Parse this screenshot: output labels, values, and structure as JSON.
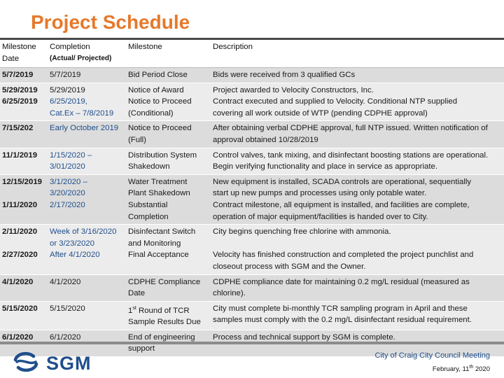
{
  "title": "Project Schedule",
  "header": {
    "col0": [
      "Milestone",
      "Date"
    ],
    "col1_main": "Completion",
    "col1_sub": "(Actual/ Projected)",
    "col2": "Milestone",
    "col3": "Description"
  },
  "rows": [
    {
      "date": [
        "5/7/2019"
      ],
      "completion": [
        "5/7/2019"
      ],
      "milestone": [
        "Bid Period Close"
      ],
      "description": [
        "Bids were received from 3 qualified GCs"
      ]
    },
    {
      "date": [
        "5/29/2019",
        "6/25/2019"
      ],
      "completion": [
        "5/29/2019",
        "6/25/2019,",
        "Cat.Ex – 7/8/2019"
      ],
      "completion_blue_from": 1,
      "milestone": [
        "Notice of Award",
        "Notice to Proceed",
        "(Conditional)"
      ],
      "description": [
        "Project awarded to Velocity Constructors, Inc.",
        "Contract executed and supplied to Velocity. Conditional NTP supplied",
        "covering all work outside of WTP (pending CDPHE approval)"
      ]
    },
    {
      "date": [
        "7/15/202"
      ],
      "completion": [
        "Early October 2019"
      ],
      "completion_blue_from": 0,
      "milestone": [
        "Notice to Proceed",
        "(Full)"
      ],
      "description": [
        "After obtaining verbal CDPHE approval, full NTP issued. Written notification of",
        "approval obtained 10/28/2019"
      ]
    },
    {
      "date": [
        "11/1/2019"
      ],
      "completion": [
        "1/15/2020 –",
        "3/01/2020"
      ],
      "completion_blue_from": 0,
      "milestone": [
        "Distribution System",
        "Shakedown"
      ],
      "description": [
        "Control valves, tank mixing, and disinfectant boosting stations are operational.",
        "Begin verifying functionality and place in service as appropriate."
      ]
    },
    {
      "date": [
        "12/15/2019",
        "",
        "1/11/2020"
      ],
      "completion": [
        "3/1/2020 –",
        "3/20/2020",
        "2/17/2020"
      ],
      "completion_blue_from": 0,
      "milestone": [
        "Water Treatment",
        "Plant Shakedown",
        "Substantial",
        "Completion"
      ],
      "description": [
        "New equipment is installed, SCADA controls are operational, sequentially",
        "start up new pumps and processes using only potable water.",
        "Contract milestone, all equipment is installed, and facilities are complete,",
        "operation of major equipment/facilities is handed over to City."
      ]
    },
    {
      "date": [
        "2/11/2020",
        "",
        "2/27/2020"
      ],
      "completion": [
        "Week of 3/16/2020",
        "or 3/23/2020",
        "After 4/1/2020"
      ],
      "completion_blue_from": 0,
      "milestone": [
        "Disinfectant Switch",
        "and Monitoring",
        "Final Acceptance"
      ],
      "description": [
        "City begins quenching free chlorine with ammonia.",
        "",
        "Velocity has finished construction and completed the project punchlist and",
        "closeout process with SGM and the Owner."
      ]
    },
    {
      "date": [
        "4/1/2020"
      ],
      "completion": [
        "4/1/2020"
      ],
      "milestone": [
        "CDPHE Compliance",
        "Date"
      ],
      "description": [
        "CDPHE compliance date for maintaining 0.2 mg/L residual (measured as",
        "chlorine)."
      ]
    },
    {
      "date": [
        "5/15/2020"
      ],
      "completion": [
        "5/15/2020"
      ],
      "milestone": [
        "1st Round of TCR",
        "Sample Results Due"
      ],
      "description": [
        "City must complete bi-monthly TCR sampling program in April and these",
        "samples must comply with the 0.2 mg/L disinfectant residual requirement."
      ]
    },
    {
      "date": [
        "6/1/2020"
      ],
      "completion": [
        "6/1/2020"
      ],
      "milestone": [
        "End of engineering",
        "support"
      ],
      "description": [
        "Process and technical support by SGM is complete."
      ]
    }
  ],
  "logo_text": "SGM",
  "footer": {
    "meeting": "City of Craig City Council Meeting",
    "date": "February, 11th 2020"
  },
  "colors": {
    "title": "#e6792b",
    "accent_blue": "#1f4e8c",
    "row_dark": "#dcdcdc",
    "row_light": "#ececec"
  }
}
